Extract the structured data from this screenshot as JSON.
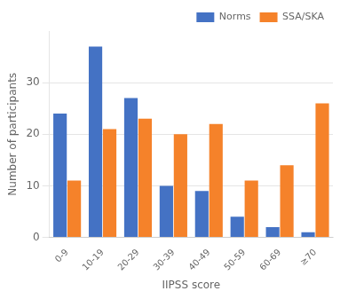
{
  "chart_data": {
    "type": "bar",
    "xlabel": "IIPSS score",
    "ylabel": "Number of participants",
    "categories": [
      "0-9",
      "10-19",
      "20-29",
      "30-39",
      "40-49",
      "50-59",
      "60-69",
      "≥70"
    ],
    "series": [
      {
        "name": "Norms",
        "color": "#4472c4",
        "values": [
          24,
          37,
          27,
          10,
          9,
          4,
          2,
          1
        ]
      },
      {
        "name": "SSA/SKA",
        "color": "#f5822a",
        "values": [
          11,
          21,
          23,
          20,
          22,
          11,
          14,
          26
        ]
      }
    ],
    "ylim": [
      0,
      40
    ],
    "yticks": [
      0,
      10,
      20,
      30
    ],
    "grid": true,
    "legend": "upper right"
  }
}
